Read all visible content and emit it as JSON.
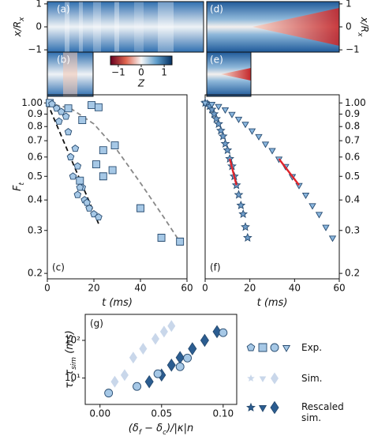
{
  "heatmaps": {
    "panel_labels": [
      "(a)",
      "(b)",
      "(d)",
      "(e)"
    ],
    "ylabel": [
      "x/R",
      "x"
    ],
    "yticks": [
      1,
      0,
      {
        "value": -1,
        "label": "−1"
      }
    ],
    "ylim": [
      -1.1,
      1.1
    ],
    "colorbar_lim": [
      -1.34,
      1.34
    ],
    "colorbar_ticks": [
      {
        "value": -1,
        "label": "−1"
      },
      0,
      1
    ],
    "colorbar_label": "Z"
  },
  "chart_data": [
    {
      "type": "scatter",
      "panel_label": "(c)",
      "xlabel": [
        "t (ms)"
      ],
      "ylabel": [
        "F",
        "t"
      ],
      "xlim": [
        0,
        60
      ],
      "xticks": [
        0,
        20,
        40,
        60
      ],
      "ylim": [
        0.19,
        1.08
      ],
      "log_y": true,
      "y_side": "left",
      "yticks": [
        {
          "value": 1,
          "label": "1.00"
        },
        0.9,
        0.8,
        0.7,
        0.6,
        0.5,
        0.4,
        0.3,
        0.2
      ],
      "series": [
        {
          "marker": "line",
          "dash": true,
          "color": "#888888",
          "x": [
            0,
            10,
            20,
            30,
            40,
            50,
            58
          ],
          "values": [
            1,
            0.95,
            0.82,
            0.64,
            0.47,
            0.34,
            0.26
          ]
        },
        {
          "marker": "line",
          "dash": true,
          "color": "#111111",
          "x": [
            0,
            22
          ],
          "values": [
            1,
            0.32
          ]
        },
        {
          "marker": "square",
          "color": "#a6c8e6",
          "x": [
            1,
            9,
            19,
            22,
            15,
            29,
            24,
            21,
            24,
            28,
            14,
            40,
            49,
            57
          ],
          "values": [
            1,
            0.95,
            0.98,
            0.96,
            0.85,
            0.67,
            0.64,
            0.56,
            0.5,
            0.53,
            0.48,
            0.37,
            0.28,
            0.27
          ]
        },
        {
          "marker": "pentagon",
          "color": "#a6c8e6",
          "x": [
            2,
            4,
            6,
            8,
            5,
            9,
            12,
            10,
            13,
            11,
            15,
            13,
            16,
            18,
            20,
            22,
            14,
            17
          ],
          "values": [
            0.99,
            0.95,
            0.92,
            0.88,
            0.84,
            0.76,
            0.65,
            0.6,
            0.55,
            0.5,
            0.45,
            0.42,
            0.4,
            0.37,
            0.35,
            0.34,
            0.45,
            0.39
          ]
        }
      ]
    },
    {
      "type": "scatter",
      "panel_label": "(f)",
      "xlabel": [
        "t (ms)"
      ],
      "xlim": [
        0,
        60
      ],
      "xticks": [
        0,
        20,
        40,
        60
      ],
      "ylim": [
        0.19,
        1.08
      ],
      "log_y": true,
      "y_side": "right",
      "yticks": [
        {
          "value": 1,
          "label": "1.00"
        },
        0.9,
        0.8,
        0.7,
        0.6,
        0.5,
        0.4,
        0.3,
        0.2
      ],
      "series": [
        {
          "marker": "star",
          "color": "#6f9cc8",
          "x": [
            0,
            1,
            2,
            3,
            4,
            5,
            6,
            7,
            8,
            9,
            10,
            11,
            12,
            13,
            14,
            15,
            16,
            17,
            18,
            19
          ],
          "values": [
            1,
            0.99,
            0.97,
            0.94,
            0.9,
            0.86,
            0.82,
            0.77,
            0.73,
            0.68,
            0.64,
            0.59,
            0.55,
            0.5,
            0.46,
            0.42,
            0.38,
            0.35,
            0.31,
            0.28
          ]
        },
        {
          "marker": "triangle",
          "color": "#8ab6de",
          "x": [
            0,
            3,
            6,
            9,
            12,
            15,
            18,
            21,
            24,
            27,
            30,
            33,
            36,
            39,
            42,
            45,
            48,
            51,
            54,
            57
          ],
          "values": [
            1,
            0.99,
            0.97,
            0.94,
            0.9,
            0.86,
            0.82,
            0.77,
            0.73,
            0.68,
            0.64,
            0.59,
            0.55,
            0.5,
            0.46,
            0.42,
            0.38,
            0.35,
            0.31,
            0.28
          ]
        },
        {
          "marker": "line",
          "color": "#e0242b",
          "x": [
            11,
            14
          ],
          "values": [
            0.59,
            0.46
          ]
        },
        {
          "marker": "line",
          "color": "#e0242b",
          "x": [
            33,
            42
          ],
          "values": [
            0.59,
            0.46
          ]
        }
      ]
    },
    {
      "type": "scatter",
      "panel_label": "(g)",
      "xlabel": [
        "(δ",
        "f",
        " − δ",
        "c",
        ")/|κ|n"
      ],
      "ylabel": [
        "τ, τ",
        "sim",
        " (ms)"
      ],
      "xlim": [
        -0.012,
        0.111
      ],
      "xticks": [
        {
          "value": 0,
          "label": "0.00"
        },
        {
          "value": 0.05,
          "label": "0.05"
        },
        {
          "value": 0.1,
          "label": "0.10"
        }
      ],
      "ylim": [
        2,
        490
      ],
      "log_y": true,
      "y_side": "left",
      "yticks": [
        {
          "value": 10,
          "label": "10¹"
        },
        {
          "value": 100,
          "label": "10²"
        }
      ],
      "series": [
        {
          "name": "Sim.",
          "marker": "diamond",
          "color": "#c9d7ea",
          "x": [
            0.012,
            0.02,
            0.027,
            0.035,
            0.045,
            0.052,
            0.058
          ],
          "values": [
            8,
            12,
            35,
            60,
            110,
            170,
            240
          ]
        },
        {
          "name": "Rescaled sim.",
          "marker": "diamond",
          "color": "#2b5d91",
          "x": [
            0.04,
            0.05,
            0.058,
            0.065,
            0.075,
            0.085,
            0.095
          ],
          "values": [
            8,
            12,
            22,
            35,
            60,
            100,
            170
          ]
        },
        {
          "name": "Exp.",
          "marker": "circle",
          "color": "#a6c8e6",
          "x": [
            0.007,
            0.03,
            0.047,
            0.065,
            0.071,
            0.1
          ],
          "values": [
            4,
            6,
            13,
            20,
            34,
            160
          ]
        }
      ]
    }
  ]
}
